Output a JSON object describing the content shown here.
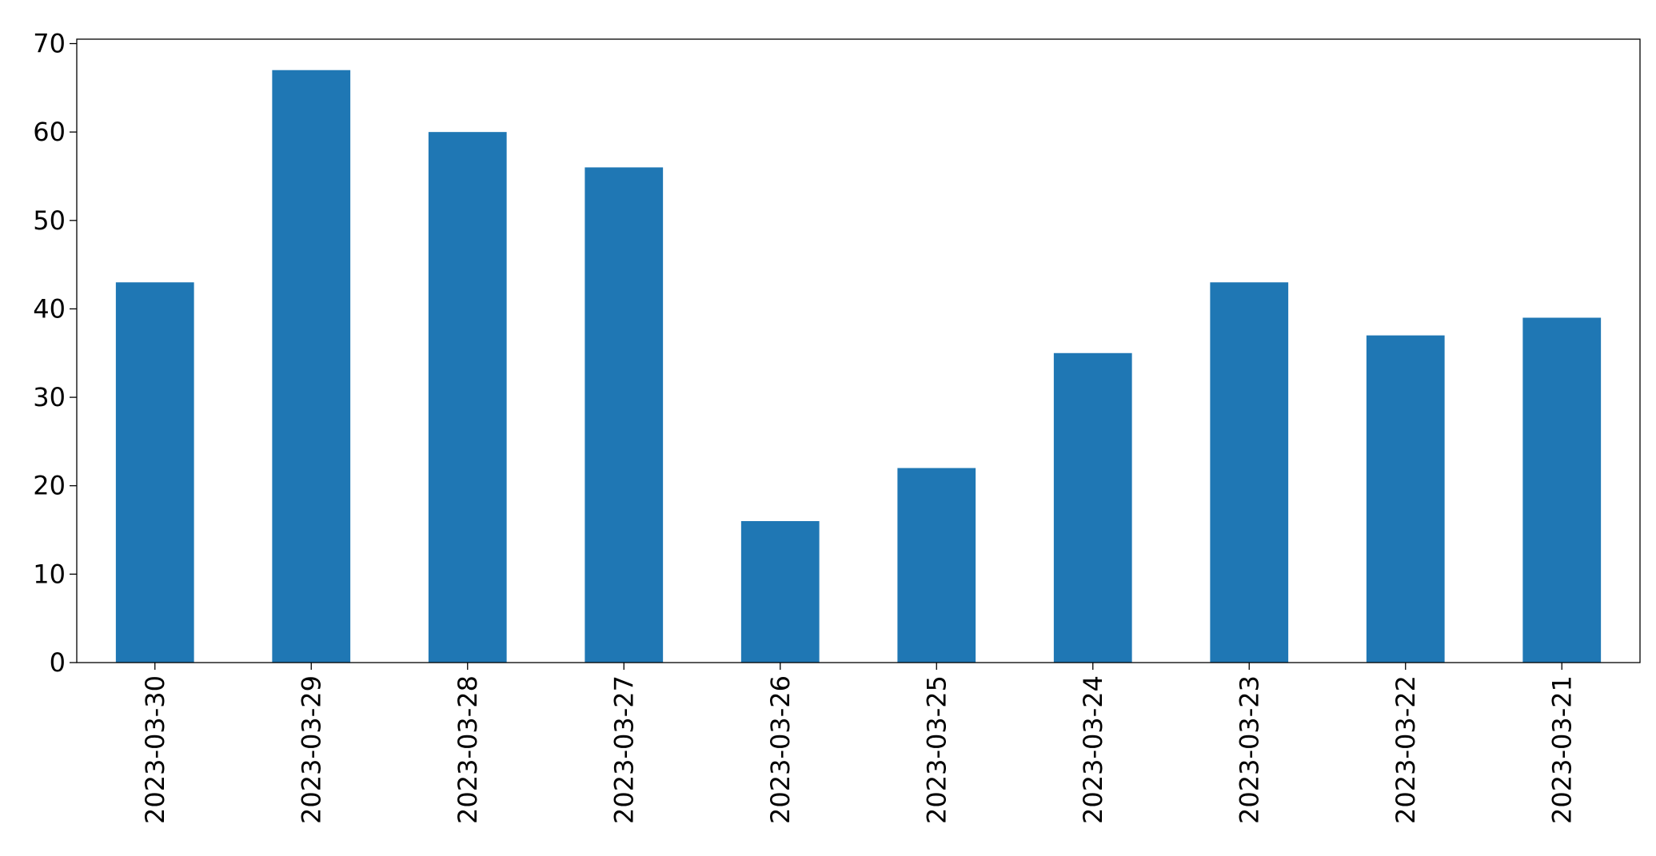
{
  "chart_data": {
    "type": "bar",
    "categories": [
      "2023-03-30",
      "2023-03-29",
      "2023-03-28",
      "2023-03-27",
      "2023-03-26",
      "2023-03-25",
      "2023-03-24",
      "2023-03-23",
      "2023-03-22",
      "2023-03-21"
    ],
    "values": [
      43,
      67,
      60,
      56,
      16,
      22,
      35,
      43,
      37,
      39
    ],
    "color": "#1f77b4",
    "ylim": [
      0,
      70.5
    ],
    "yticks": [
      0,
      10,
      20,
      30,
      40,
      50,
      60,
      70
    ],
    "grid": false
  }
}
